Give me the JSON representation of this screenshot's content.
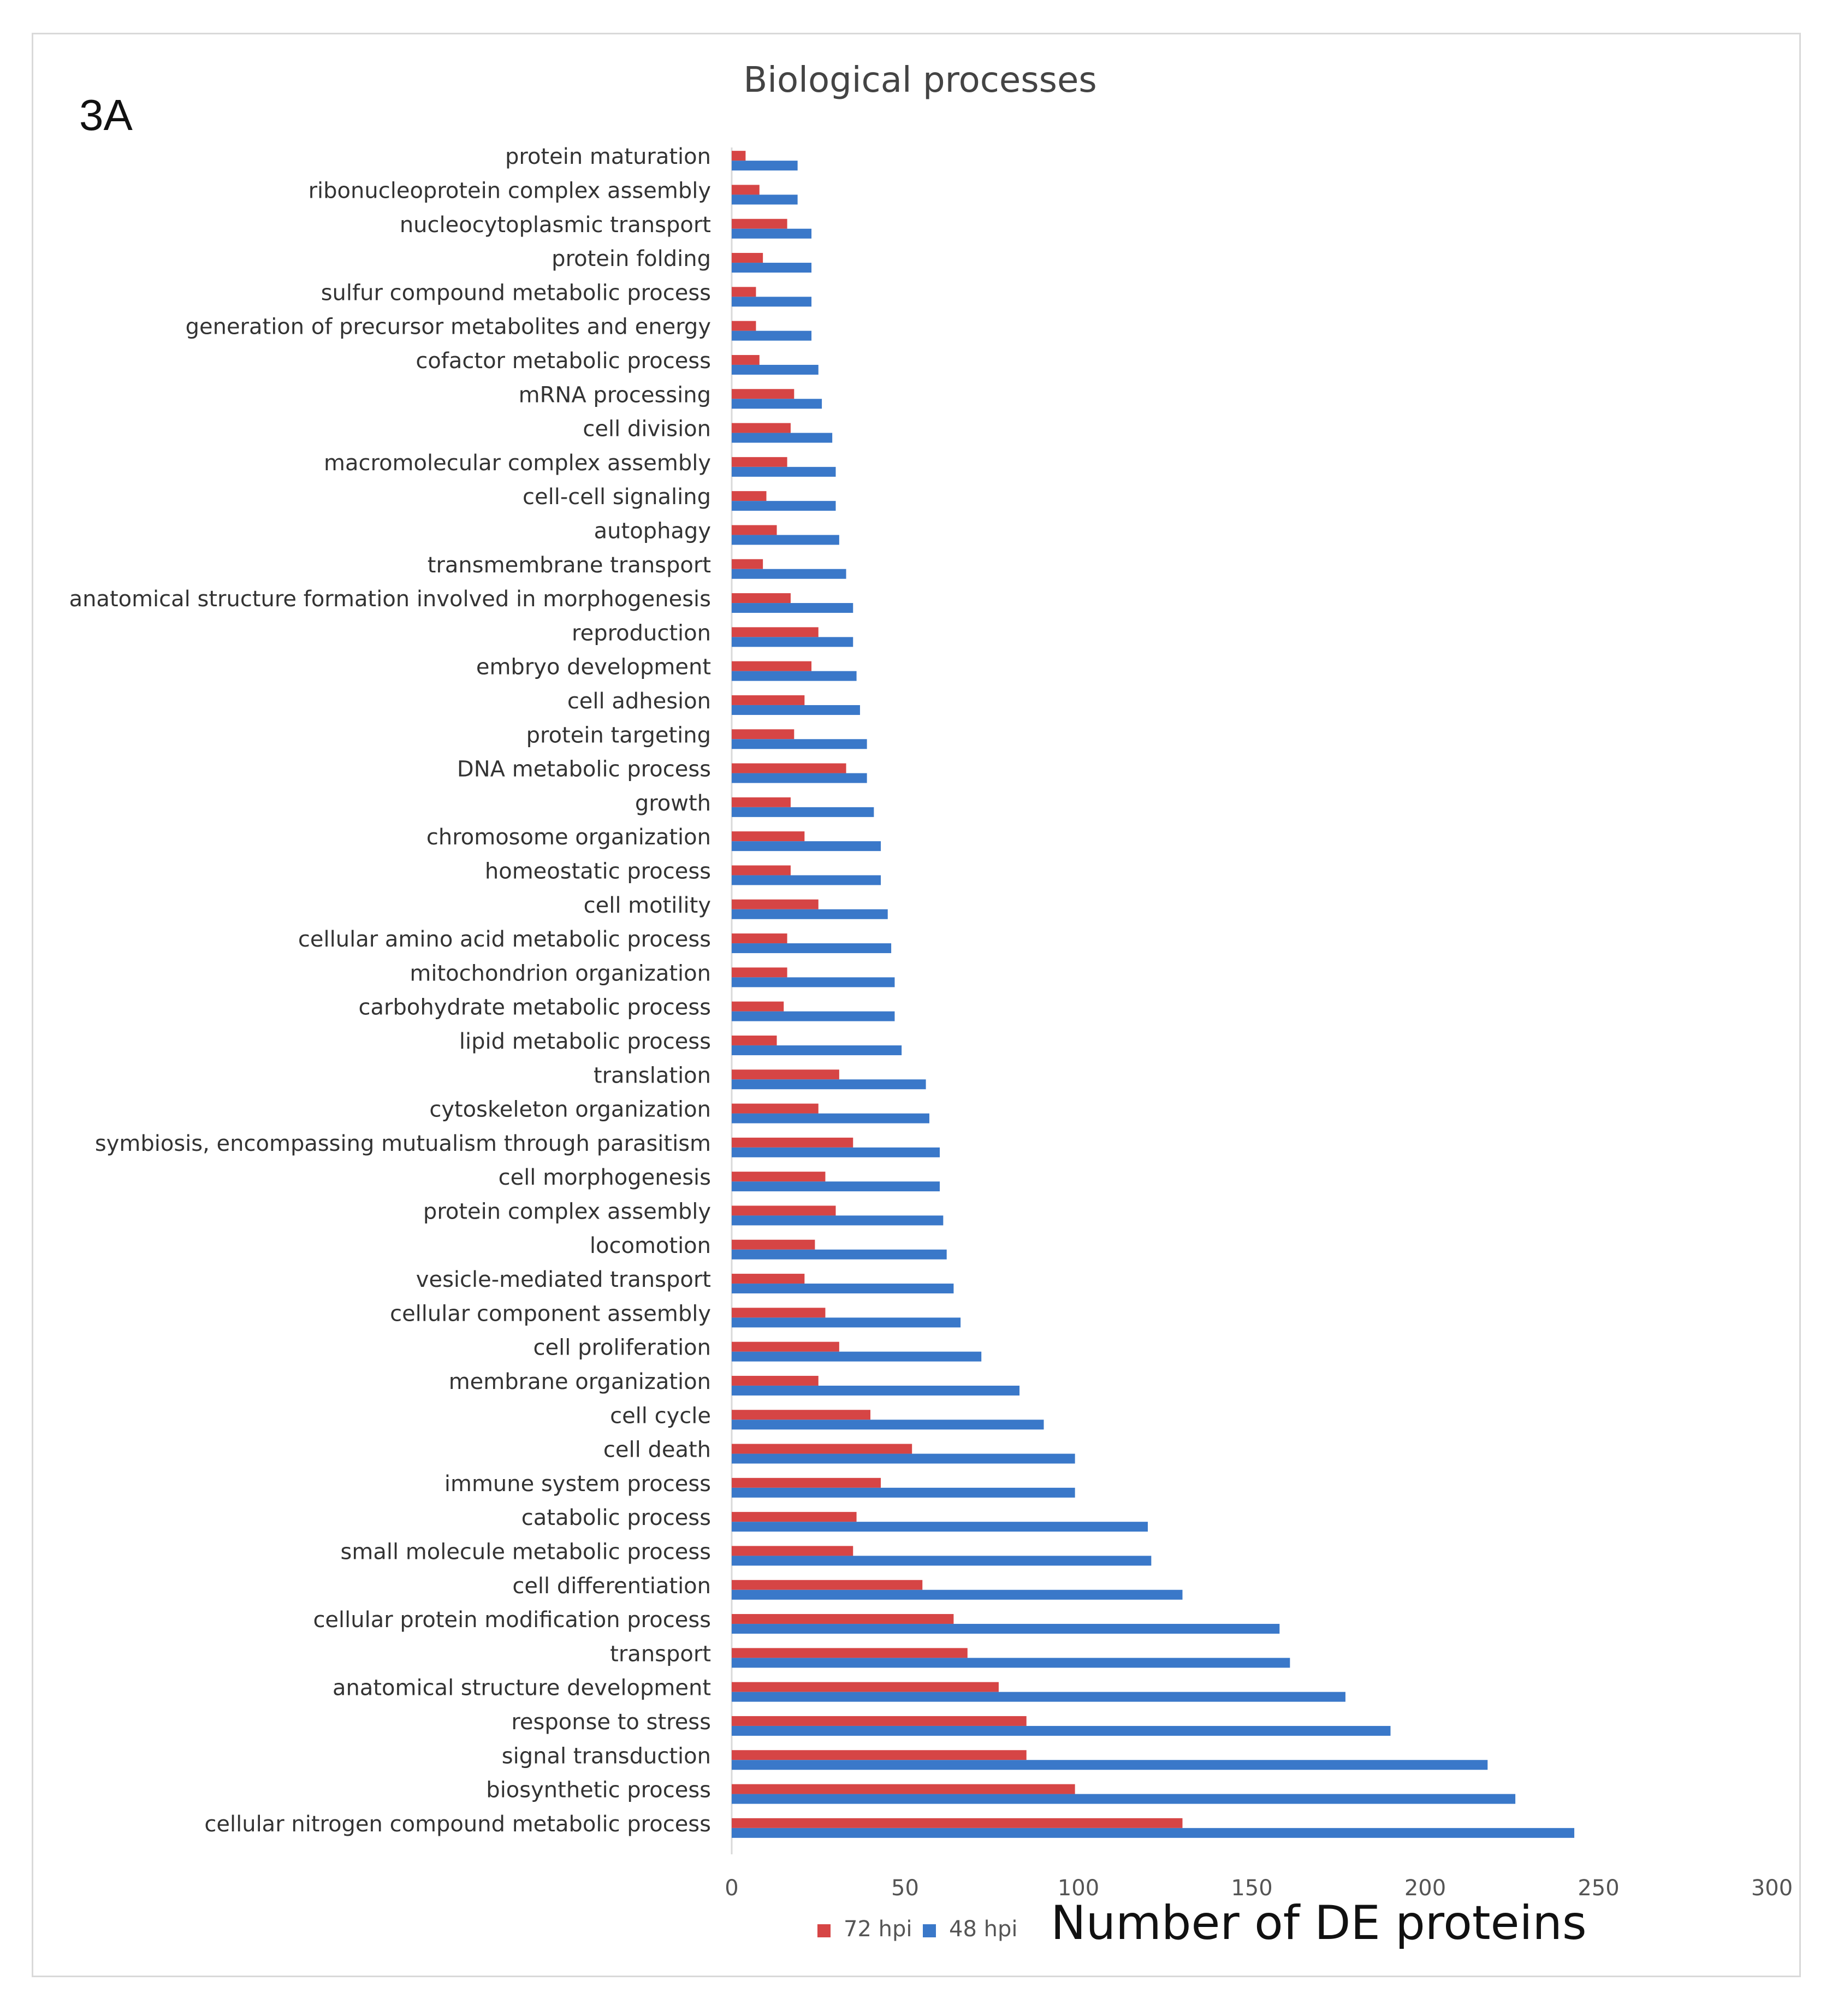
{
  "panel_label": "3A",
  "colors": {
    "series_72": "#d64545",
    "series_48": "#3a78c9",
    "text": "#333333",
    "axis": "#d9d9d9"
  },
  "chart_data": {
    "type": "bar",
    "orientation": "horizontal",
    "title": "Biological processes",
    "xlabel": "Number of DE proteins",
    "ylabel": "",
    "xlim": [
      0,
      300
    ],
    "xticks": [
      "0",
      "50",
      "100",
      "150",
      "200",
      "250",
      "300"
    ],
    "grid": false,
    "legend_position": "bottom",
    "categories": [
      "protein maturation",
      "ribonucleoprotein complex assembly",
      "nucleocytoplasmic transport",
      "protein folding",
      "sulfur compound metabolic process",
      "generation of precursor metabolites and energy",
      "cofactor metabolic process",
      "mRNA processing",
      "cell division",
      "macromolecular complex assembly",
      "cell-cell signaling",
      "autophagy",
      "transmembrane transport",
      "anatomical structure formation involved in morphogenesis",
      "reproduction",
      "embryo development",
      "cell adhesion",
      "protein targeting",
      "DNA metabolic process",
      "growth",
      "chromosome organization",
      "homeostatic process",
      "cell motility",
      "cellular amino acid metabolic process",
      "mitochondrion organization",
      "carbohydrate metabolic process",
      "lipid metabolic process",
      "translation",
      "cytoskeleton organization",
      "symbiosis, encompassing mutualism through parasitism",
      "cell morphogenesis",
      "protein complex assembly",
      "locomotion",
      "vesicle-mediated transport",
      "cellular component assembly",
      "cell proliferation",
      "membrane organization",
      "cell cycle",
      "cell death",
      "immune system process",
      "catabolic process",
      "small molecule metabolic process",
      "cell differentiation",
      "cellular protein modification process",
      "transport",
      "anatomical structure development",
      "response to stress",
      "signal transduction",
      "biosynthetic process",
      "cellular nitrogen compound metabolic process"
    ],
    "series": [
      {
        "name": "72 hpi",
        "values": [
          4,
          8,
          16,
          9,
          7,
          7,
          8,
          18,
          17,
          16,
          10,
          13,
          9,
          17,
          25,
          23,
          21,
          18,
          33,
          17,
          21,
          17,
          25,
          16,
          16,
          15,
          13,
          31,
          25,
          35,
          27,
          30,
          24,
          21,
          27,
          31,
          25,
          40,
          52,
          43,
          36,
          35,
          55,
          64,
          68,
          77,
          85,
          85,
          99,
          130
        ]
      },
      {
        "name": "48 hpi",
        "values": [
          19,
          19,
          23,
          23,
          23,
          23,
          25,
          26,
          29,
          30,
          30,
          31,
          33,
          35,
          35,
          36,
          37,
          39,
          39,
          41,
          43,
          43,
          45,
          46,
          47,
          47,
          49,
          56,
          57,
          60,
          60,
          61,
          62,
          64,
          66,
          72,
          83,
          90,
          99,
          99,
          120,
          121,
          130,
          158,
          161,
          177,
          190,
          218,
          226,
          243
        ]
      }
    ]
  }
}
